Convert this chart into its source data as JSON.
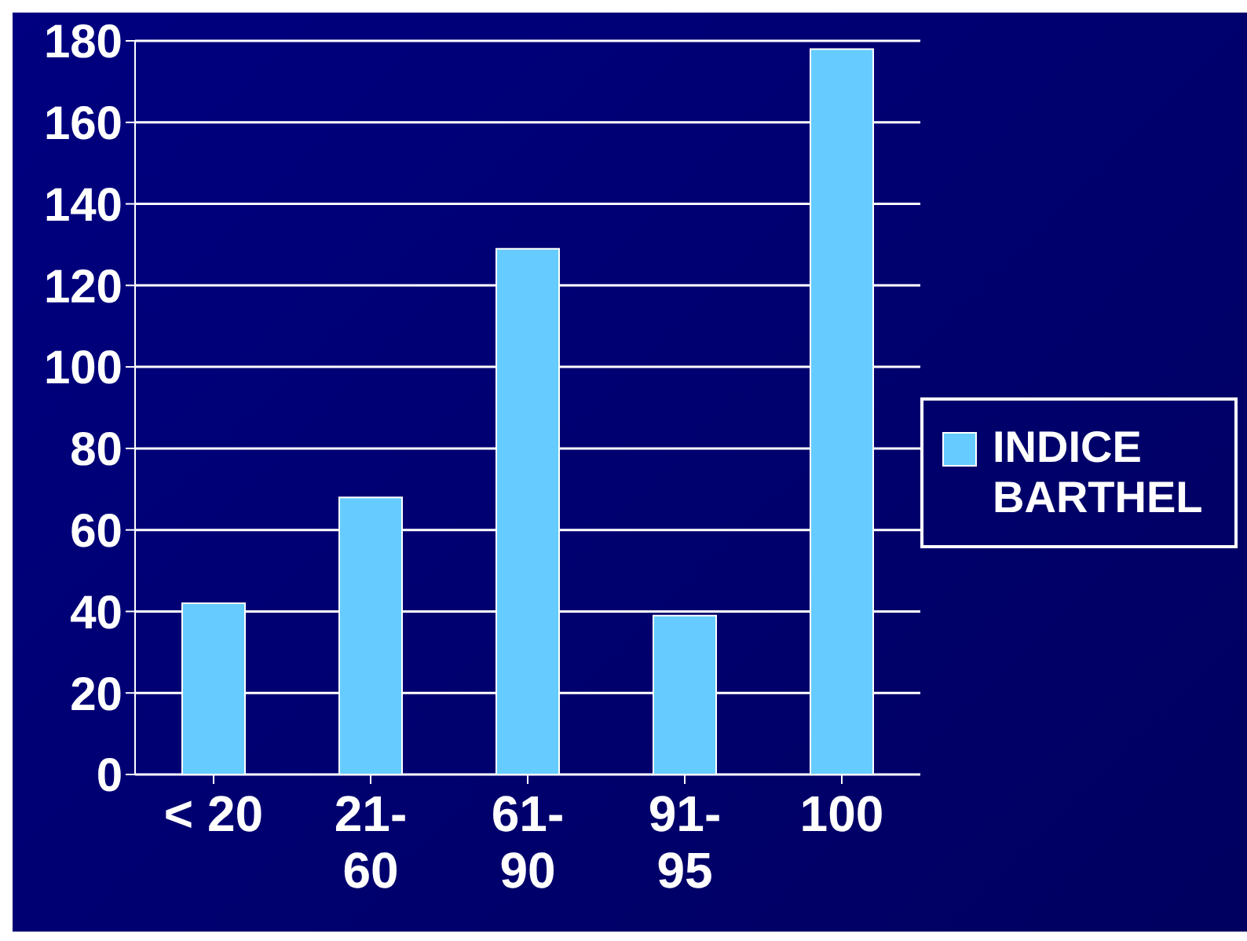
{
  "chart_data": {
    "type": "bar",
    "categories": [
      "< 20",
      "21-60",
      "61-90",
      "91-95",
      "100"
    ],
    "series": [
      {
        "name": "INDICE BARTHEL",
        "color": "#66ccff",
        "values": [
          42,
          68,
          129,
          39,
          178
        ]
      }
    ],
    "ylim": [
      0,
      180
    ],
    "yticks": [
      0,
      20,
      40,
      60,
      80,
      100,
      120,
      140,
      160,
      180
    ],
    "grid": "y",
    "legend": "right"
  }
}
